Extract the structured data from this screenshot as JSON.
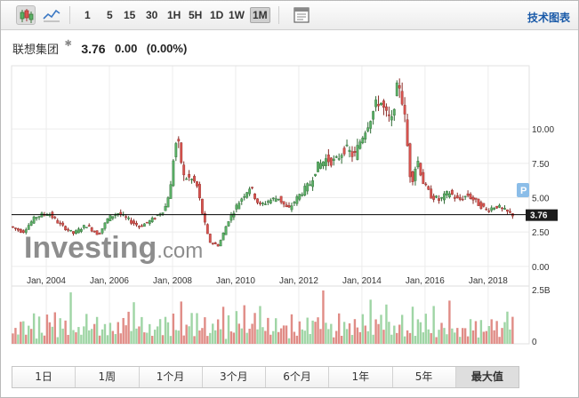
{
  "toolbar": {
    "chart_type_icons": [
      "candlestick-icon",
      "line-chart-icon"
    ],
    "intervals": [
      "1",
      "5",
      "15",
      "30",
      "1H",
      "5H",
      "1D",
      "1W",
      "1M"
    ],
    "active_interval": "1M",
    "settings_icon": "panel-icon",
    "tech_chart_link": "技术图表"
  },
  "quote": {
    "name": "联想集团",
    "price": "3.76",
    "change": "0.00",
    "change_pct": "(0.00%)"
  },
  "watermark": {
    "brand": "Investing",
    "suffix": ".com"
  },
  "price_badge": "3.76",
  "marker_label": "P",
  "chart_data": {
    "type": "candlestick",
    "x_tick_labels": [
      "Jan, 2004",
      "Jan, 2006",
      "Jan, 2008",
      "Jan, 2010",
      "Jan, 2012",
      "Jan, 2014",
      "Jan, 2016",
      "Jan, 2018"
    ],
    "x_ticks_year": [
      2004,
      2006,
      2008,
      2010,
      2012,
      2014,
      2016,
      2018
    ],
    "x_range": [
      2002.9,
      2019.3
    ],
    "y_ticks": [
      "0.00",
      "2.50",
      "5.00",
      "7.50",
      "10.00"
    ],
    "y_tick_values": [
      0,
      2.5,
      5,
      7.5,
      10
    ],
    "y_range": [
      -0.4,
      14.6
    ],
    "current_price": 3.76,
    "price_path": [
      [
        2002.9,
        2.9
      ],
      [
        2003.3,
        2.5
      ],
      [
        2003.7,
        3.6
      ],
      [
        2004.1,
        3.9
      ],
      [
        2004.5,
        3.0
      ],
      [
        2004.9,
        2.4
      ],
      [
        2005.3,
        3.0
      ],
      [
        2005.7,
        2.3
      ],
      [
        2006.0,
        3.5
      ],
      [
        2006.3,
        3.9
      ],
      [
        2006.7,
        3.3
      ],
      [
        2007.0,
        2.9
      ],
      [
        2007.4,
        3.4
      ],
      [
        2007.8,
        4.2
      ],
      [
        2008.0,
        6.0
      ],
      [
        2008.1,
        8.7
      ],
      [
        2008.2,
        9.2
      ],
      [
        2008.4,
        6.5
      ],
      [
        2008.6,
        6.4
      ],
      [
        2008.8,
        6.0
      ],
      [
        2009.0,
        3.7
      ],
      [
        2009.2,
        1.8
      ],
      [
        2009.5,
        1.5
      ],
      [
        2009.8,
        3.3
      ],
      [
        2010.1,
        4.5
      ],
      [
        2010.3,
        5.2
      ],
      [
        2010.5,
        5.8
      ],
      [
        2010.8,
        4.4
      ],
      [
        2011.1,
        4.8
      ],
      [
        2011.4,
        5.0
      ],
      [
        2011.7,
        4.1
      ],
      [
        2012.1,
        5.3
      ],
      [
        2012.4,
        6.0
      ],
      [
        2012.6,
        7.2
      ],
      [
        2012.9,
        7.8
      ],
      [
        2013.2,
        7.6
      ],
      [
        2013.5,
        8.6
      ],
      [
        2013.8,
        8.0
      ],
      [
        2014.0,
        9.2
      ],
      [
        2014.3,
        10.8
      ],
      [
        2014.6,
        12.2
      ],
      [
        2014.8,
        11.0
      ],
      [
        2015.0,
        10.5
      ],
      [
        2015.1,
        12.6
      ],
      [
        2015.25,
        13.3
      ],
      [
        2015.4,
        10.7
      ],
      [
        2015.6,
        6.0
      ],
      [
        2015.8,
        7.8
      ],
      [
        2016.0,
        6.0
      ],
      [
        2016.2,
        5.2
      ],
      [
        2016.5,
        4.8
      ],
      [
        2016.8,
        5.4
      ],
      [
        2017.1,
        4.8
      ],
      [
        2017.4,
        5.2
      ],
      [
        2017.7,
        4.6
      ],
      [
        2018.0,
        4.1
      ],
      [
        2018.3,
        4.4
      ],
      [
        2018.6,
        4.0
      ],
      [
        2018.8,
        3.76
      ]
    ],
    "volume_axis_labels": [
      "2.5B",
      "0"
    ],
    "volume_range_b": [
      0,
      2.5
    ],
    "volume_pattern_b": [
      0.7,
      1.1,
      0.5,
      0.9,
      1.3,
      0.6,
      1.0,
      0.8,
      1.5,
      0.4,
      1.2,
      0.9,
      0.6,
      1.4,
      1.0,
      0.7,
      1.8,
      0.5,
      1.1,
      0.9,
      1.3,
      0.6,
      2.2,
      1.0
    ]
  },
  "colors": {
    "up_candle": "#5ab066",
    "down_candle": "#d9534f",
    "up_volume": "#9fd5a5",
    "down_volume": "#e08c86",
    "watermark_text": "#7a7a7a",
    "price_line": "#000000",
    "badge_bg": "#1c1c1c",
    "marker_bg": "#8bbde8",
    "link": "#1a5aa8"
  },
  "range_buttons": [
    "1日",
    "1周",
    "1个月",
    "3个月",
    "6个月",
    "1年",
    "5年",
    "最大值"
  ],
  "active_range": "最大值"
}
